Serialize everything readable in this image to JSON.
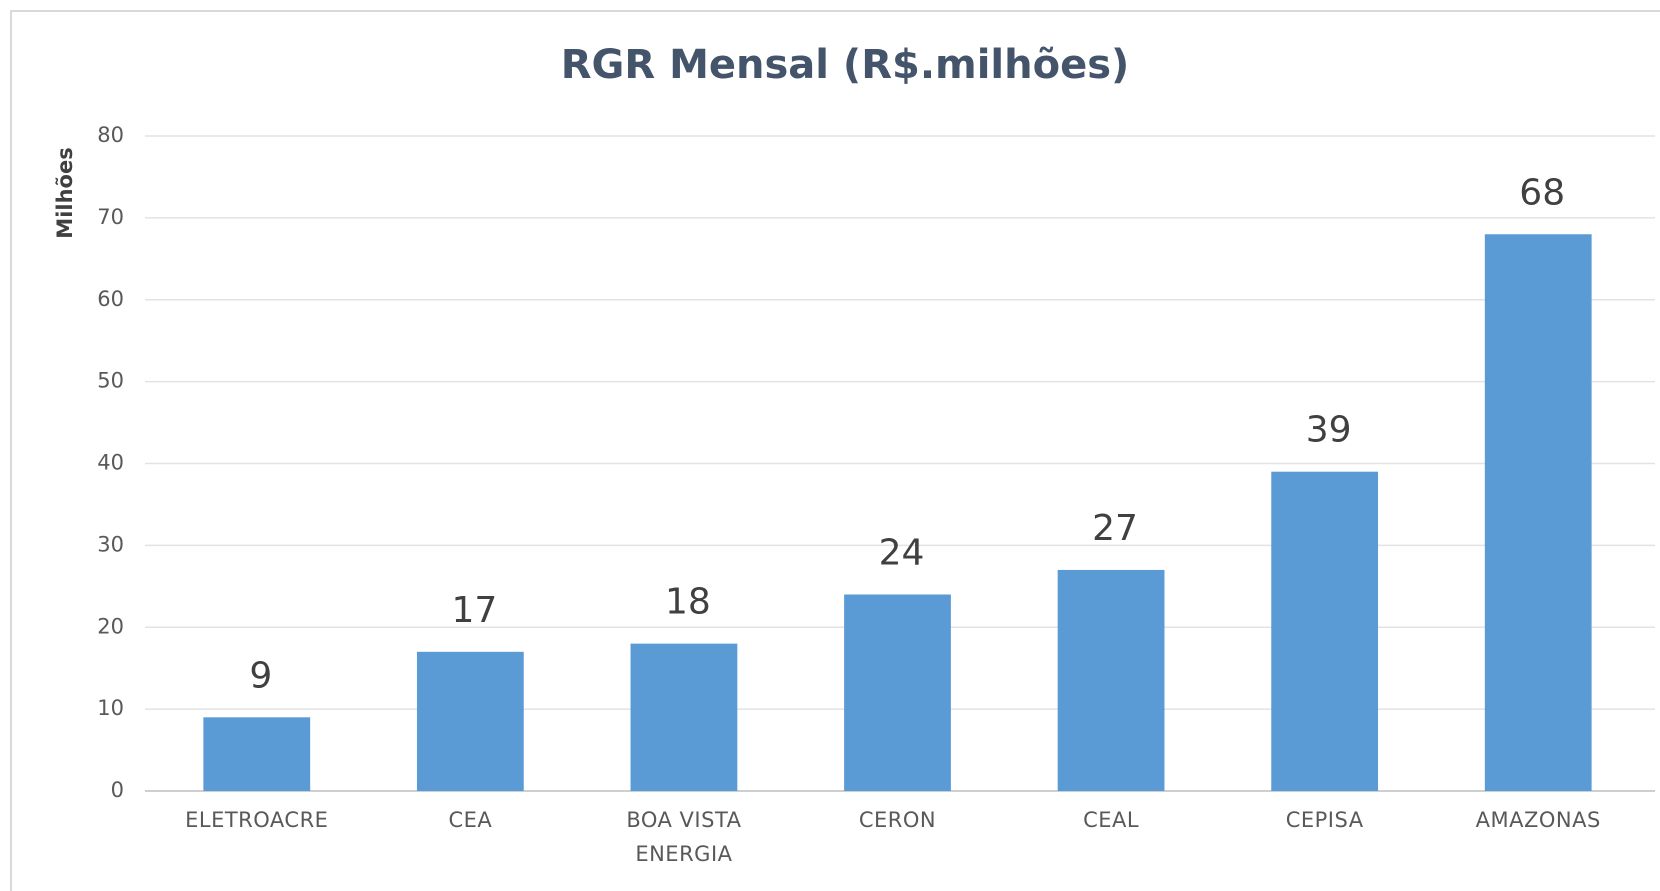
{
  "chart_data": {
    "type": "bar",
    "title": "RGR Mensal (R$.milhões)",
    "y_label": "Milhões",
    "categories": [
      "ELETROACRE",
      "CEA",
      "BOA VISTA ENERGIA",
      "CERON",
      "CEAL",
      "CEPISA",
      "AMAZONAS"
    ],
    "values": [
      9,
      17,
      18,
      24,
      27,
      39,
      68
    ],
    "color": "#5b9bd5",
    "ylim": [
      0,
      80
    ],
    "yticks": [
      0,
      10,
      20,
      30,
      40,
      50,
      60,
      70,
      80
    ],
    "grid": true
  }
}
